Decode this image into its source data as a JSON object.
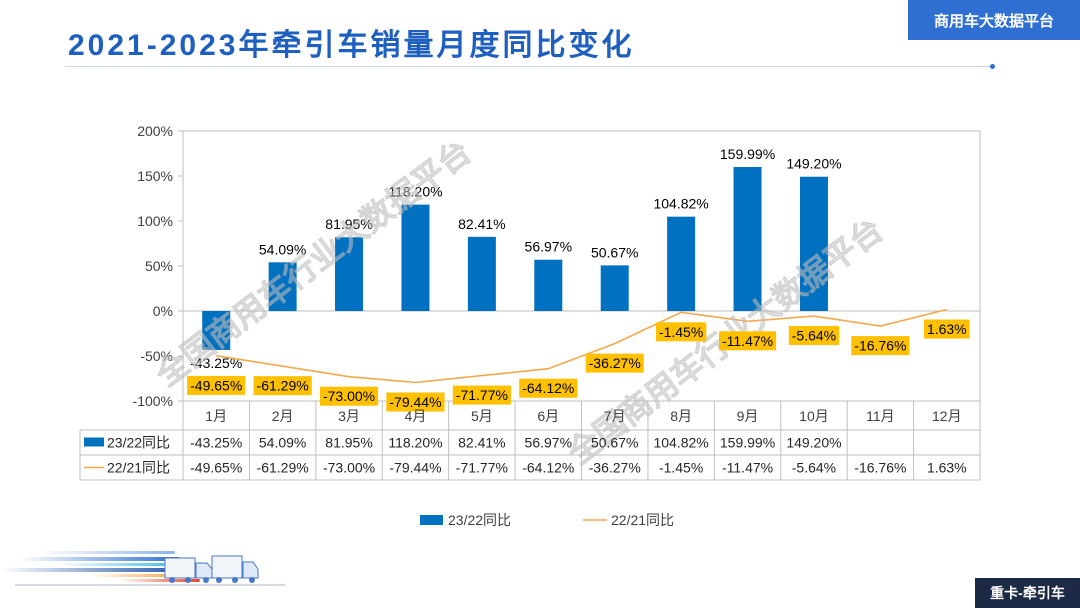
{
  "header": {
    "platform_label": "商用车大数据平台"
  },
  "footer": {
    "section_label": "重卡-牵引车"
  },
  "watermark": "全国商用车行业大数据平台",
  "colors": {
    "title": "#1F5FBF",
    "platform_box": "#2F6FD2",
    "section_box": "#1C2A45",
    "bar": "#0070C0",
    "line": "#F5A84A",
    "line_label_bg": "#FFC000"
  },
  "chart_data": {
    "type": "bar",
    "title": "2021-2023年牵引车销量月度同比变化",
    "categories": [
      "1月",
      "2月",
      "3月",
      "4月",
      "5月",
      "6月",
      "7月",
      "8月",
      "9月",
      "10月",
      "11月",
      "12月"
    ],
    "ylim": [
      -100,
      200
    ],
    "y_ticks": [
      200,
      150,
      100,
      50,
      0,
      -50,
      -100
    ],
    "y_unit": "%",
    "legend": "bottom",
    "data_table": true,
    "series": [
      {
        "name": "23/22同比",
        "type": "bar",
        "color": "#0070C0",
        "values": [
          -43.25,
          54.09,
          81.95,
          118.2,
          82.41,
          56.97,
          50.67,
          104.82,
          159.99,
          149.2,
          null,
          null
        ]
      },
      {
        "name": "22/21同比",
        "type": "line",
        "color": "#F5A84A",
        "label_bg": "#FFC000",
        "values": [
          -49.65,
          -61.29,
          -73.0,
          -79.44,
          -71.77,
          -64.12,
          -36.27,
          -1.45,
          -11.47,
          -5.64,
          -16.76,
          1.63
        ]
      }
    ]
  }
}
